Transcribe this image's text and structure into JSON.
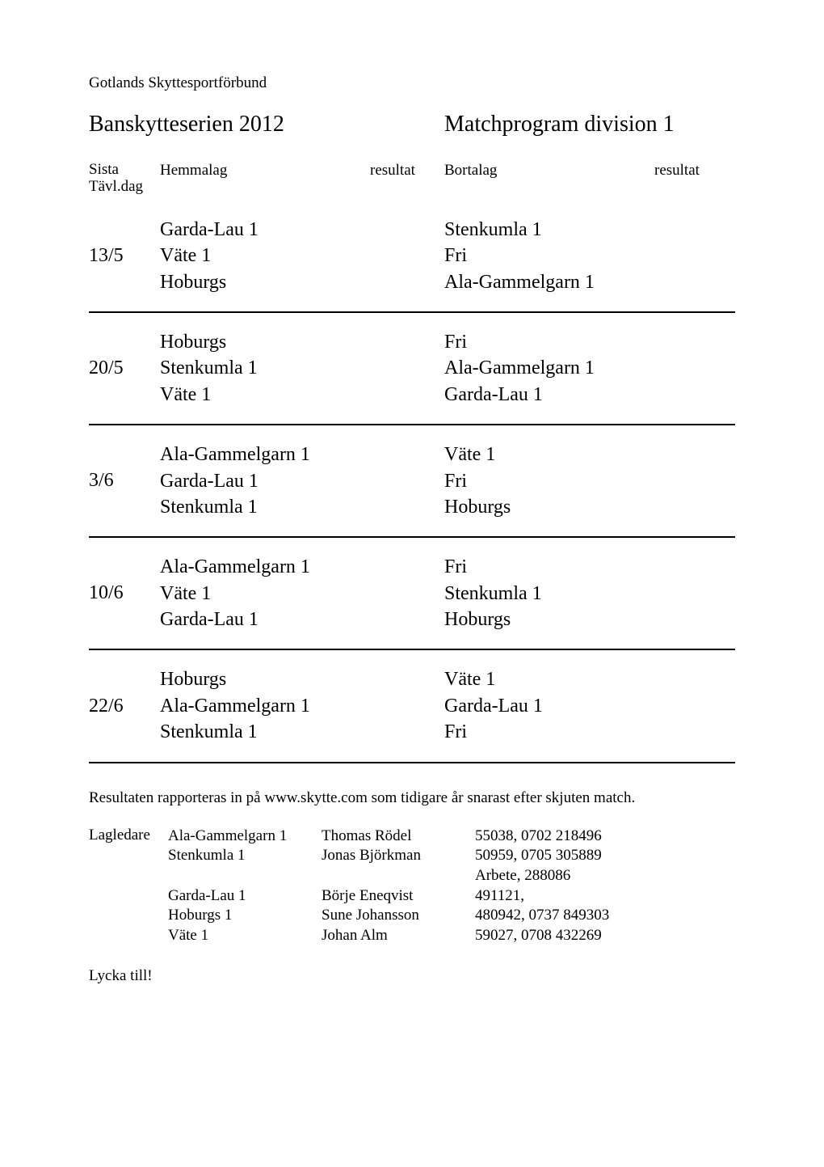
{
  "organization": "Gotlands Skyttesportförbund",
  "title_left": "Banskytteserien 2012",
  "title_right": "Matchprogram division 1",
  "headers": {
    "sista_line1": "Sista",
    "sista_line2": "Tävl.dag",
    "hemmalag": "Hemmalag",
    "resultat": "resultat",
    "bortalag": "Bortalag"
  },
  "rounds": [
    {
      "date": "13/5",
      "home": [
        "Garda-Lau 1",
        "Väte 1",
        "Hoburgs"
      ],
      "away": [
        "Stenkumla 1",
        "Fri",
        "Ala-Gammelgarn 1"
      ]
    },
    {
      "date": "20/5",
      "home": [
        "Hoburgs",
        "Stenkumla 1",
        "Väte 1"
      ],
      "away": [
        "Fri",
        "Ala-Gammelgarn 1",
        "Garda-Lau 1"
      ]
    },
    {
      "date": "3/6",
      "home": [
        "Ala-Gammelgarn 1",
        "Garda-Lau 1",
        "Stenkumla 1"
      ],
      "away": [
        "Väte 1",
        "Fri",
        "Hoburgs"
      ]
    },
    {
      "date": "10/6",
      "home": [
        "Ala-Gammelgarn 1",
        "Väte 1",
        "Garda-Lau 1"
      ],
      "away": [
        "Fri",
        "Stenkumla 1",
        "Hoburgs"
      ]
    },
    {
      "date": "22/6",
      "home": [
        "Hoburgs",
        "Ala-Gammelgarn 1",
        "Stenkumla 1"
      ],
      "away": [
        "Väte 1",
        "Garda-Lau 1",
        "Fri"
      ]
    }
  ],
  "note": "Resultaten rapporteras in på www.skytte.com som tidigare år snarast efter skjuten match.",
  "leaders_label": "Lagledare",
  "leaders_block1": [
    {
      "team": "Ala-Gammelgarn 1",
      "name": "Thomas Rödel",
      "contact": "55038, 0702 218496"
    },
    {
      "team": "Stenkumla 1",
      "name": "Jonas Björkman",
      "contact": "50959, 0705 305889"
    },
    {
      "team": "",
      "name": "",
      "contact": "Arbete, 288086"
    }
  ],
  "leaders_block2": [
    {
      "team": "Garda-Lau 1",
      "name": "Börje Eneqvist",
      "contact": "491121,"
    },
    {
      "team": "Hoburgs 1",
      "name": "Sune Johansson",
      "contact": "480942, 0737 849303"
    },
    {
      "team": "Väte 1",
      "name": "Johan Alm",
      "contact": "59027, 0708 432269"
    }
  ],
  "lycka": "Lycka till!"
}
